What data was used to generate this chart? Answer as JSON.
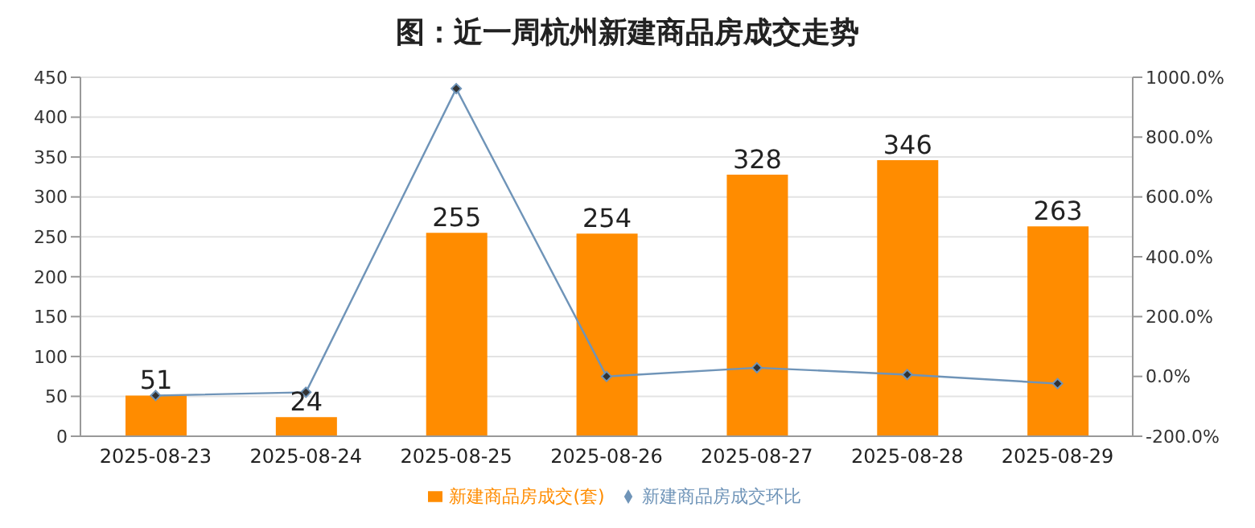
{
  "chart_data": {
    "type": "bar",
    "title": "图：近一周杭州新建商品房成交走势",
    "categories": [
      "2025-08-23",
      "2025-08-24",
      "2025-08-25",
      "2025-08-26",
      "2025-08-27",
      "2025-08-28",
      "2025-08-29"
    ],
    "series": [
      {
        "name": "新建商品房成交(套)",
        "color": "#ff8c00",
        "values": [
          51,
          24,
          255,
          254,
          328,
          346,
          263
        ],
        "value_labels": [
          "51",
          "24",
          "255",
          "254",
          "328",
          "346",
          "263"
        ]
      },
      {
        "name": "新建商品房成交环比",
        "type": "line",
        "axis": "y2",
        "color": "#6f94b8",
        "marker": "diamond",
        "values": [
          -64,
          -53,
          962,
          0,
          29,
          6,
          -24
        ]
      }
    ],
    "ylim": [
      0,
      450
    ],
    "yticks": [
      0,
      50,
      100,
      150,
      200,
      250,
      300,
      350,
      400,
      450
    ],
    "y2lim": [
      -200,
      1000
    ],
    "y2ticks": [
      {
        "value": -200,
        "label": "-200.0%"
      },
      {
        "value": 0,
        "label": "0.0%"
      },
      {
        "value": 200,
        "label": "200.0%"
      },
      {
        "value": 400,
        "label": "400.0%"
      },
      {
        "value": 600,
        "label": "600.0%"
      },
      {
        "value": 800,
        "label": "800.0%"
      },
      {
        "value": 1000,
        "label": "1000.0%"
      }
    ],
    "grid": "y",
    "legend": "bottom"
  }
}
